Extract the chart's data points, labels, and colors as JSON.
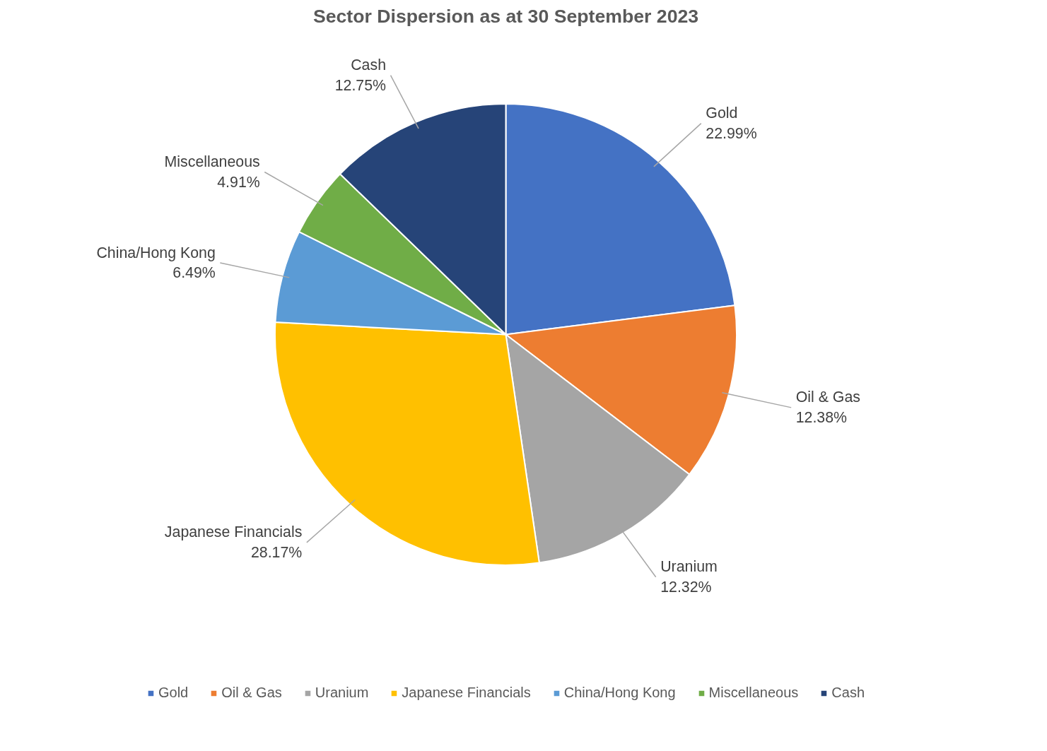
{
  "chart_data": {
    "type": "pie",
    "title": "Sector Dispersion as at 30 September 2023",
    "categories": [
      "Gold",
      "Oil & Gas",
      "Uranium",
      "Japanese Financials",
      "China/Hong Kong",
      "Miscellaneous",
      "Cash"
    ],
    "values": [
      22.99,
      12.38,
      12.32,
      28.17,
      6.49,
      4.91,
      12.75
    ],
    "value_labels": [
      "22.99%",
      "12.38%",
      "12.32%",
      "28.17%",
      "6.49%",
      "4.91%",
      "12.75%"
    ],
    "colors": [
      "#4472c4",
      "#ed7d31",
      "#a5a5a5",
      "#ffc000",
      "#5b9bd5",
      "#70ad47",
      "#264478"
    ],
    "legend": "bottom"
  }
}
